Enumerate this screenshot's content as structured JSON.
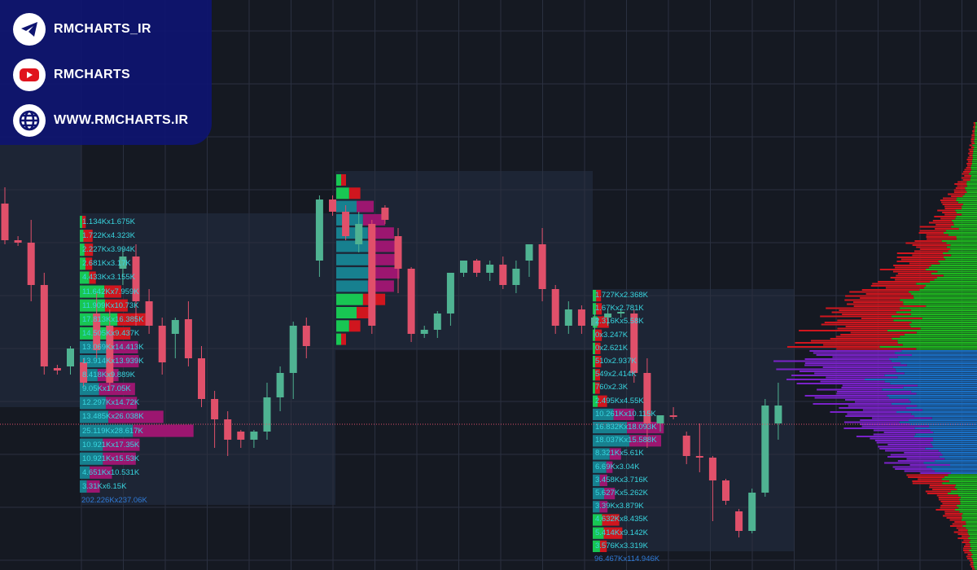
{
  "colors": {
    "background": "#151922",
    "zone": "#1d2535",
    "grid": "#2a3040",
    "bull": "#4fb392",
    "bear": "#e0506a",
    "buy": "#18c653",
    "sell": "#d0161e",
    "bid": "#17808f",
    "ask": "#9c1670",
    "poc_upper_green": "#1fb51f",
    "profile_blue": "#1a6fc4",
    "profile_purple": "#7a22c9"
  },
  "footprint_left": {
    "rows": [
      {
        "text": "1.134Kx1.675K",
        "type": "trade"
      },
      {
        "text": "1.722Kx4.323K",
        "type": "trade"
      },
      {
        "text": "2.227Kx3.994K",
        "type": "trade"
      },
      {
        "text": "2.681Kx3.17K",
        "type": "trade"
      },
      {
        "text": "4.433Kx3.155K",
        "type": "trade"
      },
      {
        "text": "11.642Kx7.959K",
        "type": "trade"
      },
      {
        "text": "11.909Kx10.73K",
        "type": "trade"
      },
      {
        "text": "17.813Kx16.385K",
        "type": "trade"
      },
      {
        "text": "14.505Kx9.437K",
        "type": "trade"
      },
      {
        "text": "13.069Kx14.413K",
        "type": "quote"
      },
      {
        "text": "13.914Kx13.939K",
        "type": "quote"
      },
      {
        "text": "8.418Kx9.889K",
        "type": "quote"
      },
      {
        "text": "9.05Kx17.05K",
        "type": "quote"
      },
      {
        "text": "12.297Kx14.72K",
        "type": "quote"
      },
      {
        "text": "13.485Kx26.038K",
        "type": "quote"
      },
      {
        "text": "25.119Kx28.617K",
        "type": "quote"
      },
      {
        "text": "10.921Kx17.35K",
        "type": "quote"
      },
      {
        "text": "10.921Kx15.53K",
        "type": "quote"
      },
      {
        "text": "4.651Kx10.531K",
        "type": "quote"
      },
      {
        "text": "3.31Kx6.15K",
        "type": "quote"
      }
    ],
    "total": "202.226Kx237.06K"
  },
  "footprint_right": {
    "rows": [
      {
        "text": "1.727Kx2.368K",
        "type": "trade"
      },
      {
        "text": "1.67Kx2.781K",
        "type": "trade"
      },
      {
        "text": "2.316Kx5.58K",
        "type": "trade"
      },
      {
        "text": "0x3.247K",
        "type": "trade"
      },
      {
        "text": "0x2.621K",
        "type": "trade"
      },
      {
        "text": "510x2.937K",
        "type": "trade"
      },
      {
        "text": "549x2.414K",
        "type": "trade"
      },
      {
        "text": "760x2.3K",
        "type": "trade"
      },
      {
        "text": "2.495Kx4.55K",
        "type": "trade"
      },
      {
        "text": "10.261Kx10.115K",
        "type": "quote"
      },
      {
        "text": "16.832Kx18.093K",
        "type": "quote"
      },
      {
        "text": "18.037Kx15.588K",
        "type": "quote"
      },
      {
        "text": "8.321Kx5.61K",
        "type": "quote"
      },
      {
        "text": "6.69Kx3.04K",
        "type": "quote"
      },
      {
        "text": "3.458Kx3.716K",
        "type": "quote"
      },
      {
        "text": "5.627Kx5.262K",
        "type": "quote"
      },
      {
        "text": "3.39Kx3.879K",
        "type": "quote"
      },
      {
        "text": "4.632Kx8.435K",
        "type": "trade"
      },
      {
        "text": "5.414Kx9.142K",
        "type": "trade"
      },
      {
        "text": "3.576Kx3.319K",
        "type": "trade"
      }
    ],
    "total": "96.467Kx114.946K"
  },
  "candles": [
    [
      450,
      405,
      470,
      400
    ],
    [
      405,
      402,
      410,
      398
    ],
    [
      402,
      350,
      430,
      330
    ],
    [
      350,
      250,
      365,
      240
    ],
    [
      248,
      245,
      252,
      240
    ],
    [
      250,
      272,
      275,
      240
    ],
    [
      255,
      230,
      260,
      225
    ],
    [
      315,
      270,
      340,
      260
    ],
    [
      300,
      230,
      320,
      220
    ],
    [
      370,
      385,
      395,
      350
    ],
    [
      385,
      330,
      400,
      300
    ],
    [
      330,
      300,
      345,
      290
    ],
    [
      300,
      255,
      310,
      240
    ],
    [
      290,
      307,
      310,
      260
    ],
    [
      308,
      260,
      330,
      250
    ],
    [
      260,
      210,
      275,
      200
    ],
    [
      210,
      185,
      220,
      150
    ],
    [
      185,
      160,
      195,
      140
    ],
    [
      170,
      160,
      172,
      150
    ],
    [
      160,
      170,
      172,
      150
    ],
    [
      170,
      212,
      230,
      160
    ],
    [
      212,
      242,
      250,
      195
    ],
    [
      242,
      300,
      305,
      210
    ],
    [
      300,
      275,
      310,
      260
    ],
    [
      380,
      455,
      460,
      360
    ],
    [
      455,
      440,
      460,
      435
    ],
    [
      440,
      410,
      448,
      405
    ],
    [
      400,
      425,
      440,
      390
    ],
    [
      425,
      300,
      430,
      290
    ],
    [
      445,
      430,
      448,
      425
    ],
    [
      410,
      370,
      420,
      340
    ],
    [
      370,
      290,
      372,
      280
    ],
    [
      290,
      295,
      300,
      285
    ],
    [
      295,
      315,
      318,
      285
    ],
    [
      315,
      365,
      365,
      300
    ],
    [
      365,
      380,
      380,
      360
    ],
    [
      380,
      365,
      382,
      360
    ],
    [
      365,
      375,
      380,
      355
    ],
    [
      375,
      350,
      385,
      345
    ],
    [
      350,
      370,
      380,
      340
    ],
    [
      380,
      400,
      400,
      360
    ],
    [
      400,
      345,
      420,
      330
    ],
    [
      345,
      300,
      350,
      290
    ],
    [
      300,
      320,
      330,
      290
    ],
    [
      320,
      300,
      325,
      290
    ],
    [
      300,
      310,
      320,
      285
    ],
    [
      310,
      315,
      320,
      300
    ],
    [
      315,
      317,
      320,
      310
    ],
    [
      315,
      242,
      320,
      230
    ],
    [
      242,
      180,
      260,
      150
    ],
    [
      180,
      190,
      190,
      170
    ],
    [
      190,
      190,
      200,
      185
    ],
    [
      165,
      140,
      170,
      130
    ],
    [
      140,
      138,
      180,
      120
    ],
    [
      138,
      110,
      140,
      60
    ],
    [
      110,
      85,
      112,
      80
    ],
    [
      72,
      48,
      75,
      40
    ],
    [
      48,
      95,
      100,
      45
    ],
    [
      95,
      202,
      210,
      90
    ],
    [
      180,
      202,
      230,
      160
    ]
  ],
  "price_line": 179,
  "profile_shape": [
    2,
    3,
    4,
    6,
    8,
    12,
    18,
    22,
    28,
    34,
    40,
    48,
    56,
    62,
    70,
    78,
    86,
    92,
    98,
    104,
    96,
    88,
    80,
    72,
    66,
    58,
    50,
    42,
    36,
    28,
    22,
    16,
    12,
    8,
    5,
    3
  ],
  "social": {
    "items": [
      {
        "icon": "telegram-icon",
        "label": "RMCHARTS_IR"
      },
      {
        "icon": "youtube-icon",
        "label": "RMCHARTS"
      },
      {
        "icon": "globe-icon",
        "label": "WWW.RMCHARTS.IR"
      }
    ]
  }
}
